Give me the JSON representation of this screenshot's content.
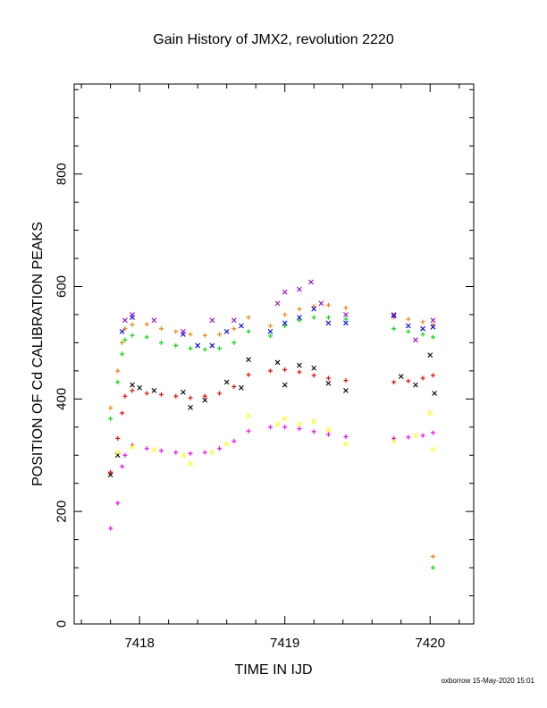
{
  "page": {
    "credit": "oxborrow 15-May-2020 15:01"
  },
  "chart_data": {
    "type": "scatter",
    "title": "Gain History of JMX2, revolution 2220",
    "xlabel": "TIME IN IJD",
    "ylabel": "POSITION OF Cd CALIBRATION PEAKS",
    "xlim": [
      7417.55,
      7420.3
    ],
    "ylim": [
      0,
      960
    ],
    "xticks": [
      7418,
      7419,
      7420
    ],
    "yticks": [
      0,
      200,
      400,
      600,
      800
    ],
    "grid": false,
    "markers": [
      "+",
      "x"
    ],
    "series": [
      {
        "color": "#ff7f00",
        "marker": "+",
        "points": [
          [
            7417.8,
            384
          ],
          [
            7417.85,
            450
          ],
          [
            7417.88,
            500
          ],
          [
            7417.9,
            525
          ],
          [
            7417.95,
            532
          ],
          [
            7418.05,
            533
          ],
          [
            7418.15,
            525
          ],
          [
            7418.25,
            520
          ],
          [
            7418.35,
            515
          ],
          [
            7418.45,
            513
          ],
          [
            7418.55,
            515
          ],
          [
            7418.65,
            525
          ],
          [
            7418.75,
            545
          ],
          [
            7418.9,
            530
          ],
          [
            7419.0,
            550
          ],
          [
            7419.1,
            560
          ],
          [
            7419.2,
            565
          ],
          [
            7419.3,
            567
          ],
          [
            7419.42,
            562
          ],
          [
            7419.75,
            545
          ],
          [
            7419.85,
            542
          ],
          [
            7419.95,
            537
          ],
          [
            7420.02,
            532
          ],
          [
            7420.02,
            120
          ]
        ]
      },
      {
        "color": "#00e000",
        "marker": "+",
        "points": [
          [
            7417.8,
            365
          ],
          [
            7417.85,
            430
          ],
          [
            7417.88,
            480
          ],
          [
            7417.9,
            505
          ],
          [
            7417.95,
            513
          ],
          [
            7418.05,
            510
          ],
          [
            7418.15,
            500
          ],
          [
            7418.25,
            495
          ],
          [
            7418.35,
            490
          ],
          [
            7418.45,
            488
          ],
          [
            7418.55,
            490
          ],
          [
            7418.65,
            500
          ],
          [
            7418.75,
            520
          ],
          [
            7418.9,
            512
          ],
          [
            7419.0,
            530
          ],
          [
            7419.1,
            540
          ],
          [
            7419.2,
            545
          ],
          [
            7419.3,
            545
          ],
          [
            7419.42,
            542
          ],
          [
            7419.75,
            525
          ],
          [
            7419.85,
            520
          ],
          [
            7419.95,
            515
          ],
          [
            7420.02,
            510
          ],
          [
            7420.02,
            100
          ]
        ]
      },
      {
        "color": "#ff0000",
        "marker": "+",
        "points": [
          [
            7417.8,
            270
          ],
          [
            7417.85,
            330
          ],
          [
            7417.88,
            375
          ],
          [
            7417.9,
            405
          ],
          [
            7417.95,
            415
          ],
          [
            7418.05,
            410
          ],
          [
            7418.15,
            408
          ],
          [
            7418.25,
            405
          ],
          [
            7418.35,
            402
          ],
          [
            7418.45,
            405
          ],
          [
            7418.55,
            410
          ],
          [
            7418.65,
            422
          ],
          [
            7418.75,
            443
          ],
          [
            7418.9,
            450
          ],
          [
            7419.0,
            452
          ],
          [
            7419.1,
            448
          ],
          [
            7419.2,
            442
          ],
          [
            7419.3,
            437
          ],
          [
            7419.42,
            433
          ],
          [
            7419.75,
            430
          ],
          [
            7419.85,
            432
          ],
          [
            7419.95,
            437
          ],
          [
            7420.02,
            442
          ]
        ]
      },
      {
        "color": "#ff00ff",
        "marker": "+",
        "points": [
          [
            7417.8,
            170
          ],
          [
            7417.85,
            215
          ],
          [
            7417.88,
            280
          ],
          [
            7417.9,
            300
          ],
          [
            7417.95,
            318
          ],
          [
            7418.05,
            312
          ],
          [
            7418.15,
            308
          ],
          [
            7418.25,
            305
          ],
          [
            7418.35,
            303
          ],
          [
            7418.45,
            305
          ],
          [
            7418.55,
            312
          ],
          [
            7418.65,
            325
          ],
          [
            7418.75,
            343
          ],
          [
            7418.9,
            350
          ],
          [
            7419.0,
            350
          ],
          [
            7419.1,
            347
          ],
          [
            7419.2,
            342
          ],
          [
            7419.3,
            337
          ],
          [
            7419.42,
            333
          ],
          [
            7419.75,
            330
          ],
          [
            7419.85,
            332
          ],
          [
            7419.95,
            335
          ],
          [
            7420.02,
            340
          ]
        ]
      },
      {
        "color": "#0000ff",
        "marker": "x",
        "points": [
          [
            7417.88,
            520
          ],
          [
            7417.95,
            545
          ],
          [
            7418.3,
            515
          ],
          [
            7418.4,
            495
          ],
          [
            7418.5,
            495
          ],
          [
            7418.6,
            520
          ],
          [
            7418.7,
            530
          ],
          [
            7418.9,
            520
          ],
          [
            7419.0,
            535
          ],
          [
            7419.1,
            545
          ],
          [
            7419.2,
            560
          ],
          [
            7419.3,
            535
          ],
          [
            7419.42,
            535
          ],
          [
            7419.75,
            548
          ],
          [
            7419.85,
            530
          ],
          [
            7419.95,
            525
          ],
          [
            7420.02,
            528
          ]
        ]
      },
      {
        "color": "#9900cc",
        "marker": "x",
        "points": [
          [
            7417.9,
            540
          ],
          [
            7417.95,
            550
          ],
          [
            7418.1,
            540
          ],
          [
            7418.3,
            520
          ],
          [
            7418.5,
            540
          ],
          [
            7418.65,
            540
          ],
          [
            7418.95,
            570
          ],
          [
            7419.0,
            590
          ],
          [
            7419.1,
            595
          ],
          [
            7419.18,
            608
          ],
          [
            7419.25,
            570
          ],
          [
            7419.42,
            550
          ],
          [
            7419.75,
            550
          ],
          [
            7419.9,
            505
          ],
          [
            7420.02,
            540
          ]
        ]
      },
      {
        "color": "#000000",
        "marker": "x",
        "points": [
          [
            7417.8,
            265
          ],
          [
            7417.85,
            300
          ],
          [
            7417.95,
            425
          ],
          [
            7418.0,
            420
          ],
          [
            7418.1,
            415
          ],
          [
            7418.3,
            412
          ],
          [
            7418.35,
            385
          ],
          [
            7418.45,
            398
          ],
          [
            7418.6,
            430
          ],
          [
            7418.7,
            420
          ],
          [
            7418.75,
            470
          ],
          [
            7418.95,
            465
          ],
          [
            7419.0,
            425
          ],
          [
            7419.1,
            460
          ],
          [
            7419.2,
            455
          ],
          [
            7419.3,
            428
          ],
          [
            7419.42,
            415
          ],
          [
            7419.8,
            440
          ],
          [
            7419.9,
            425
          ],
          [
            7420.0,
            478
          ],
          [
            7420.03,
            410
          ]
        ]
      },
      {
        "color": "#ffff00",
        "marker": "x",
        "points": [
          [
            7417.85,
            305
          ],
          [
            7417.95,
            315
          ],
          [
            7418.1,
            310
          ],
          [
            7418.3,
            300
          ],
          [
            7418.35,
            285
          ],
          [
            7418.5,
            305
          ],
          [
            7418.6,
            320
          ],
          [
            7418.75,
            370
          ],
          [
            7418.95,
            355
          ],
          [
            7419.0,
            365
          ],
          [
            7419.1,
            355
          ],
          [
            7419.2,
            360
          ],
          [
            7419.3,
            345
          ],
          [
            7419.42,
            320
          ],
          [
            7419.75,
            325
          ],
          [
            7419.9,
            335
          ],
          [
            7420.0,
            375
          ],
          [
            7420.02,
            310
          ]
        ]
      }
    ]
  }
}
